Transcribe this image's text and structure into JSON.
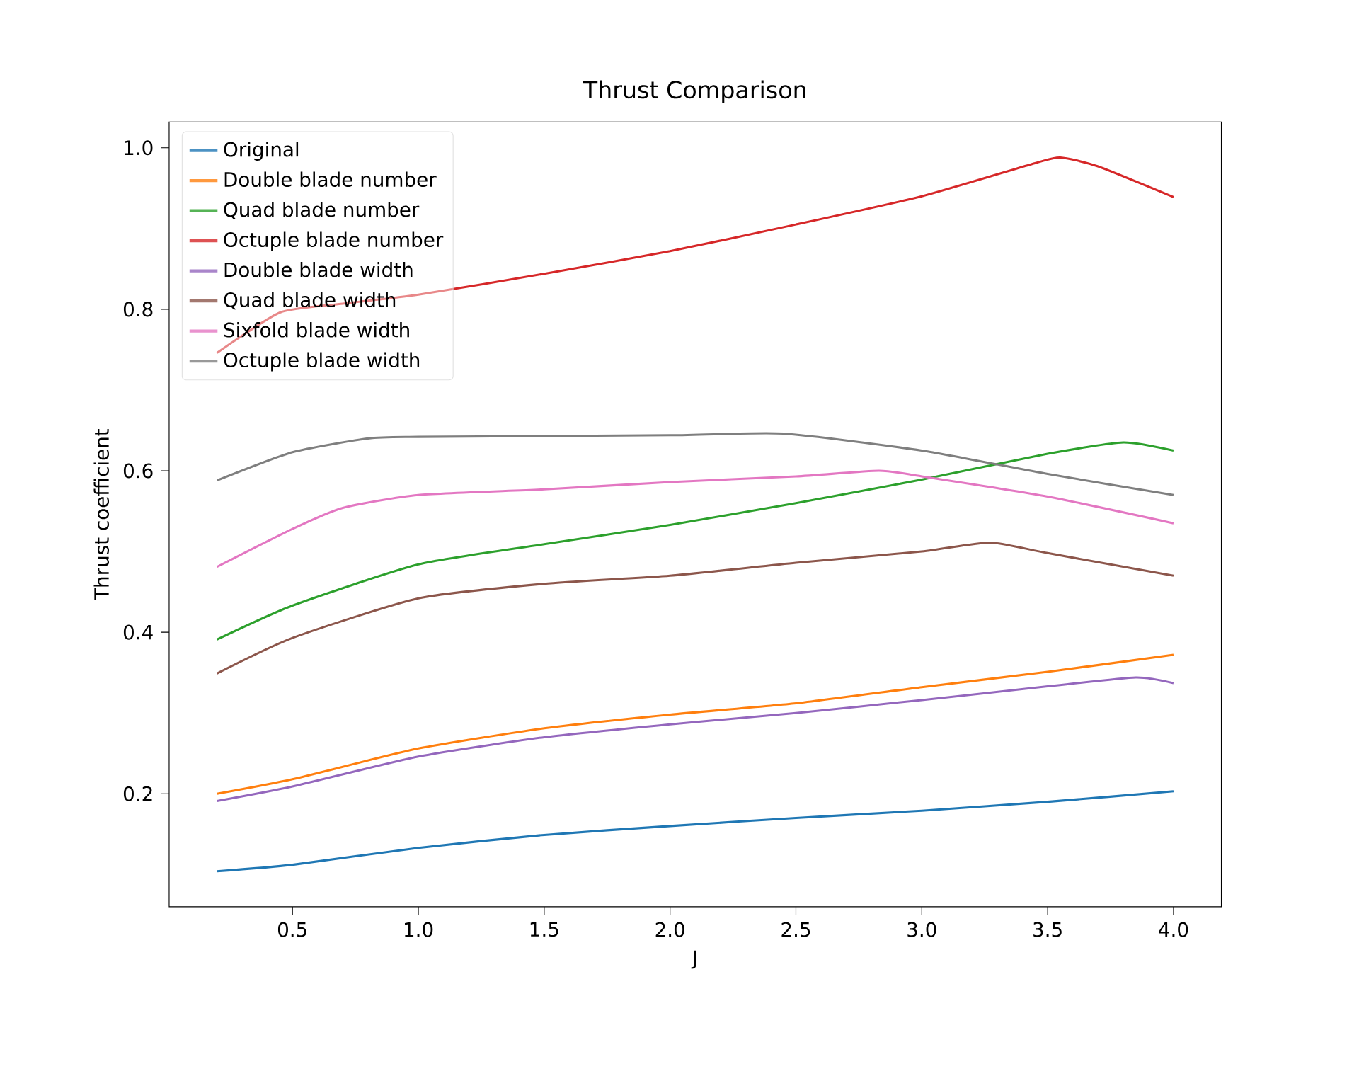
{
  "chart_data": {
    "type": "line",
    "title": "Thrust Comparison",
    "xlabel": "J",
    "ylabel": "Thrust coefficient",
    "x": [
      0.2,
      0.5,
      1.0,
      1.5,
      2.0,
      2.5,
      3.0,
      3.5,
      4.0
    ],
    "series": [
      {
        "name": "Original",
        "color": "#1f77b4",
        "values": [
          0.104,
          0.112,
          0.133,
          0.149,
          0.16,
          0.17,
          0.179,
          0.19,
          0.203
        ]
      },
      {
        "name": "Double blade number",
        "color": "#ff7f0e",
        "values": [
          0.2,
          0.218,
          0.256,
          0.281,
          0.298,
          0.312,
          0.332,
          0.351,
          0.372
        ]
      },
      {
        "name": "Quad blade number",
        "color": "#2ca02c",
        "x": [
          0.2,
          0.5,
          1.0,
          1.5,
          2.0,
          2.5,
          3.0,
          3.5,
          3.8,
          4.0
        ],
        "values": [
          0.391,
          0.433,
          0.484,
          0.509,
          0.533,
          0.56,
          0.589,
          0.621,
          0.635,
          0.625
        ]
      },
      {
        "name": "Octuple blade number",
        "color": "#d62728",
        "x": [
          0.2,
          0.45,
          0.7,
          1.0,
          1.5,
          2.0,
          2.5,
          3.0,
          3.45,
          3.55,
          3.7,
          4.0
        ],
        "values": [
          0.746,
          0.796,
          0.807,
          0.818,
          0.844,
          0.872,
          0.905,
          0.94,
          0.981,
          0.988,
          0.977,
          0.939
        ]
      },
      {
        "name": "Double blade width",
        "color": "#9467bd",
        "x": [
          0.2,
          0.5,
          1.0,
          1.5,
          2.0,
          2.5,
          3.0,
          3.5,
          3.85,
          4.0
        ],
        "values": [
          0.191,
          0.209,
          0.246,
          0.27,
          0.286,
          0.3,
          0.316,
          0.333,
          0.344,
          0.337
        ]
      },
      {
        "name": "Quad blade width",
        "color": "#8c564b",
        "x": [
          0.2,
          0.5,
          1.0,
          1.5,
          2.0,
          2.5,
          3.0,
          3.27,
          3.5,
          4.0
        ],
        "values": [
          0.349,
          0.393,
          0.442,
          0.46,
          0.47,
          0.486,
          0.5,
          0.511,
          0.498,
          0.47
        ]
      },
      {
        "name": "Sixfold blade width",
        "color": "#e377c2",
        "x": [
          0.2,
          0.5,
          0.7,
          1.0,
          1.5,
          2.0,
          2.5,
          2.83,
          3.0,
          3.5,
          4.0
        ],
        "values": [
          0.481,
          0.528,
          0.554,
          0.57,
          0.577,
          0.586,
          0.593,
          0.6,
          0.593,
          0.568,
          0.535
        ]
      },
      {
        "name": "Octuple blade width",
        "color": "#7f7f7f",
        "x": [
          0.2,
          0.5,
          0.8,
          1.0,
          2.0,
          2.45,
          3.0,
          3.5,
          4.0
        ],
        "values": [
          0.588,
          0.623,
          0.64,
          0.642,
          0.644,
          0.646,
          0.625,
          0.596,
          0.57
        ]
      }
    ],
    "xlim": [
      0.01,
      4.19
    ],
    "ylim": [
      0.06,
      1.032
    ],
    "xticks": [
      0.5,
      {
        "value": 1.0,
        "label": "1.0"
      },
      1.5,
      {
        "value": 2.0,
        "label": "2.0"
      },
      2.5,
      {
        "value": 3.0,
        "label": "3.0"
      },
      3.5,
      {
        "value": 4.0,
        "label": "4.0"
      }
    ],
    "yticks": [
      0.2,
      0.4,
      0.6,
      0.8,
      {
        "value": 1.0,
        "label": "1.0"
      }
    ],
    "grid": false,
    "legend": "top left",
    "marker": "none",
    "line_style": "solid"
  }
}
